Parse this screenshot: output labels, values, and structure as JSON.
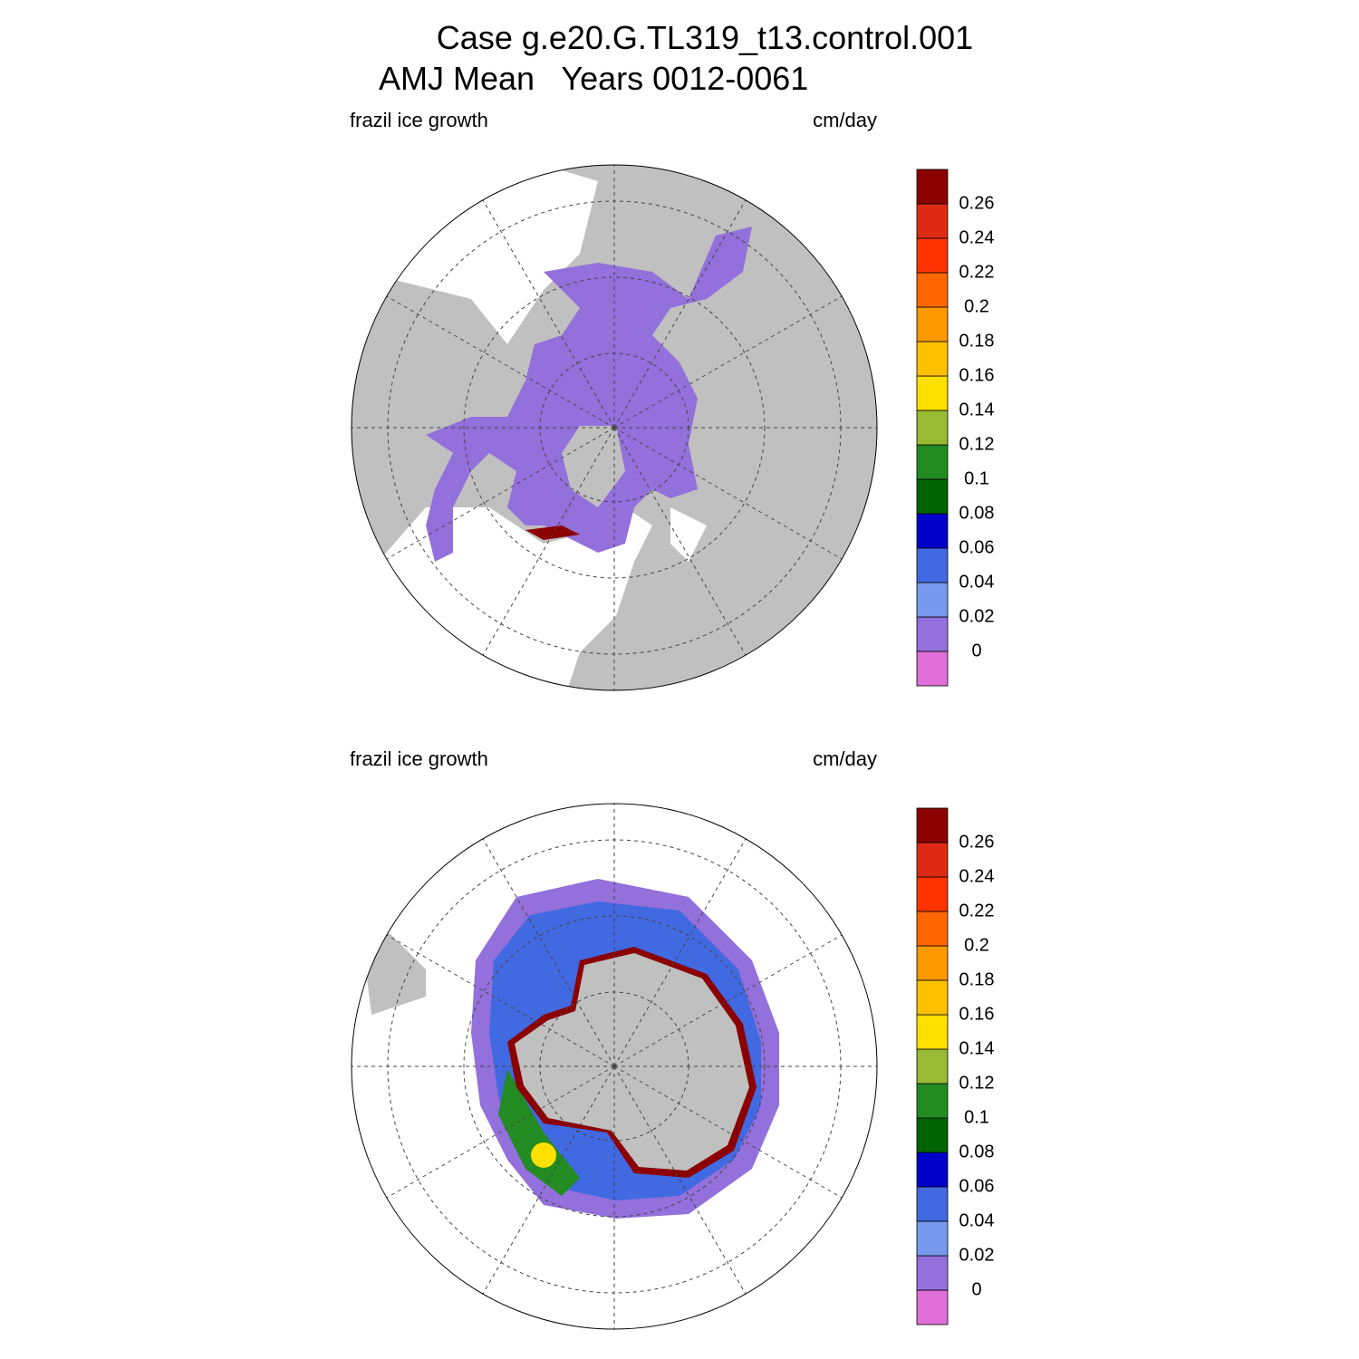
{
  "title": {
    "line1": "Case g.e20.G.TL319_t13.control.001",
    "line2": "AMJ Mean   Years 0012-0061"
  },
  "colorbar": {
    "levels": [
      0,
      0.02,
      0.04,
      0.06,
      0.08,
      0.1,
      0.12,
      0.14,
      0.16,
      0.18,
      0.2,
      0.22,
      0.24,
      0.26
    ],
    "colors": [
      "#e070d8",
      "#9370db",
      "#7799ee",
      "#4169e1",
      "#0000c8",
      "#006400",
      "#228b22",
      "#99bb33",
      "#ffe000",
      "#ffc000",
      "#ff9900",
      "#ff6600",
      "#ff3300",
      "#dd2a12",
      "#8b0000"
    ]
  },
  "panels": [
    {
      "left_label": "frazil ice growth",
      "right_label": "cm/day"
    },
    {
      "left_label": "frazil ice growth",
      "right_label": "cm/day"
    }
  ]
}
